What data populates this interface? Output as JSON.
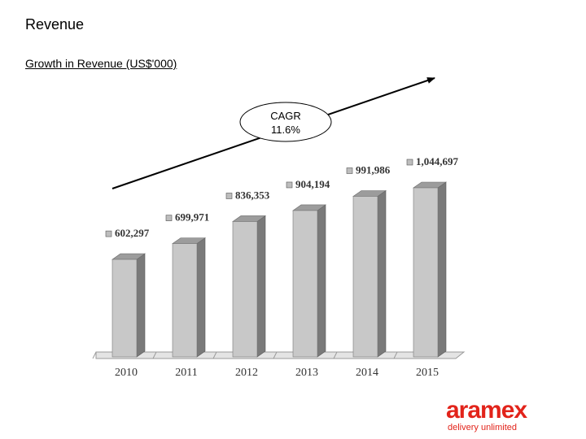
{
  "page": {
    "title": "Revenue"
  },
  "chart_data": {
    "type": "bar",
    "title": "Growth in Revenue (US$'000)",
    "categories": [
      "2010",
      "2011",
      "2012",
      "2013",
      "2014",
      "2015"
    ],
    "values": [
      602297,
      699971,
      836353,
      904194,
      991986,
      1044697
    ],
    "value_labels": [
      "602,297",
      "699,971",
      "836,353",
      "904,194",
      "991,986",
      "1,044,697"
    ],
    "annotation": {
      "line1": "CAGR",
      "line2": "11.6%"
    },
    "bar_color": "#c8c8c8",
    "grid": false
  },
  "logo": {
    "word": "aramex",
    "tagline": "delivery unlimited",
    "color": "#e2231a"
  }
}
